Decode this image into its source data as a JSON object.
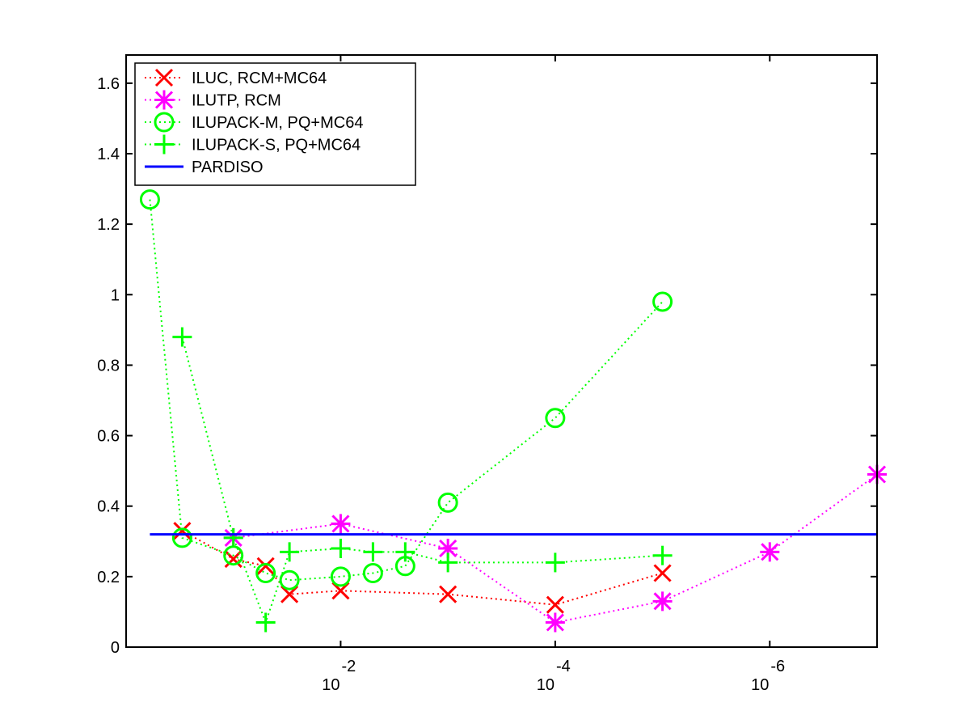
{
  "chart_data": {
    "type": "line",
    "title": "",
    "xlabel": "",
    "ylabel": "",
    "x_scale": "log_decreasing",
    "xlim": [
      1,
      1e-07
    ],
    "ylim": [
      0,
      1.68
    ],
    "grid": false,
    "legend_position": "top-left",
    "y_ticks": [
      {
        "value": 0,
        "label": "0"
      },
      {
        "value": 0.2,
        "label": "0.2"
      },
      {
        "value": 0.4,
        "label": "0.4"
      },
      {
        "value": 0.6,
        "label": "0.6"
      },
      {
        "value": 0.8,
        "label": "0.8"
      },
      {
        "value": 1.0,
        "label": "1"
      },
      {
        "value": 1.2,
        "label": "1.2"
      },
      {
        "value": 1.4,
        "label": "1.4"
      },
      {
        "value": 1.6,
        "label": "1.6"
      }
    ],
    "x_ticks": [
      {
        "value": 0.01,
        "base": "10",
        "exp": "-2"
      },
      {
        "value": 0.0001,
        "base": "10",
        "exp": "-4"
      },
      {
        "value": 1e-06,
        "base": "10",
        "exp": "-6"
      }
    ],
    "series": [
      {
        "name": "ILUC, RCM+MC64",
        "color": "#ff0000",
        "marker": "x",
        "x": [
          0.3,
          0.1,
          0.05,
          0.03,
          0.01,
          0.001,
          0.0001,
          1e-05
        ],
        "y": [
          0.33,
          0.25,
          0.23,
          0.15,
          0.16,
          0.15,
          0.12,
          0.21
        ]
      },
      {
        "name": "ILUTP, RCM",
        "color": "#ff00ff",
        "marker": "asterisk",
        "x": [
          0.1,
          0.01,
          0.001,
          0.0001,
          1e-05,
          1e-06,
          1e-07
        ],
        "y": [
          0.31,
          0.35,
          0.28,
          0.07,
          0.13,
          0.27,
          0.49
        ]
      },
      {
        "name": "ILUPACK-M, PQ+MC64",
        "color": "#00ff00",
        "marker": "circle",
        "x": [
          0.6,
          0.3,
          0.1,
          0.05,
          0.03,
          0.01,
          0.005,
          0.0025,
          0.001,
          0.0001,
          1e-05
        ],
        "y": [
          1.27,
          0.31,
          0.26,
          0.21,
          0.19,
          0.2,
          0.21,
          0.23,
          0.41,
          0.65,
          0.98
        ]
      },
      {
        "name": "ILUPACK-S, PQ+MC64",
        "color": "#00ff00",
        "marker": "plus",
        "x": [
          0.3,
          0.1,
          0.05,
          0.03,
          0.01,
          0.005,
          0.0025,
          0.001,
          0.0001,
          1e-05
        ],
        "y": [
          0.88,
          0.31,
          0.07,
          0.27,
          0.28,
          0.27,
          0.27,
          0.24,
          0.24,
          0.26
        ]
      },
      {
        "name": "PARDISO",
        "color": "#0000ff",
        "marker": "none",
        "style": "solid",
        "x": [
          0.6,
          1e-07
        ],
        "y": [
          0.32,
          0.32
        ]
      }
    ]
  }
}
